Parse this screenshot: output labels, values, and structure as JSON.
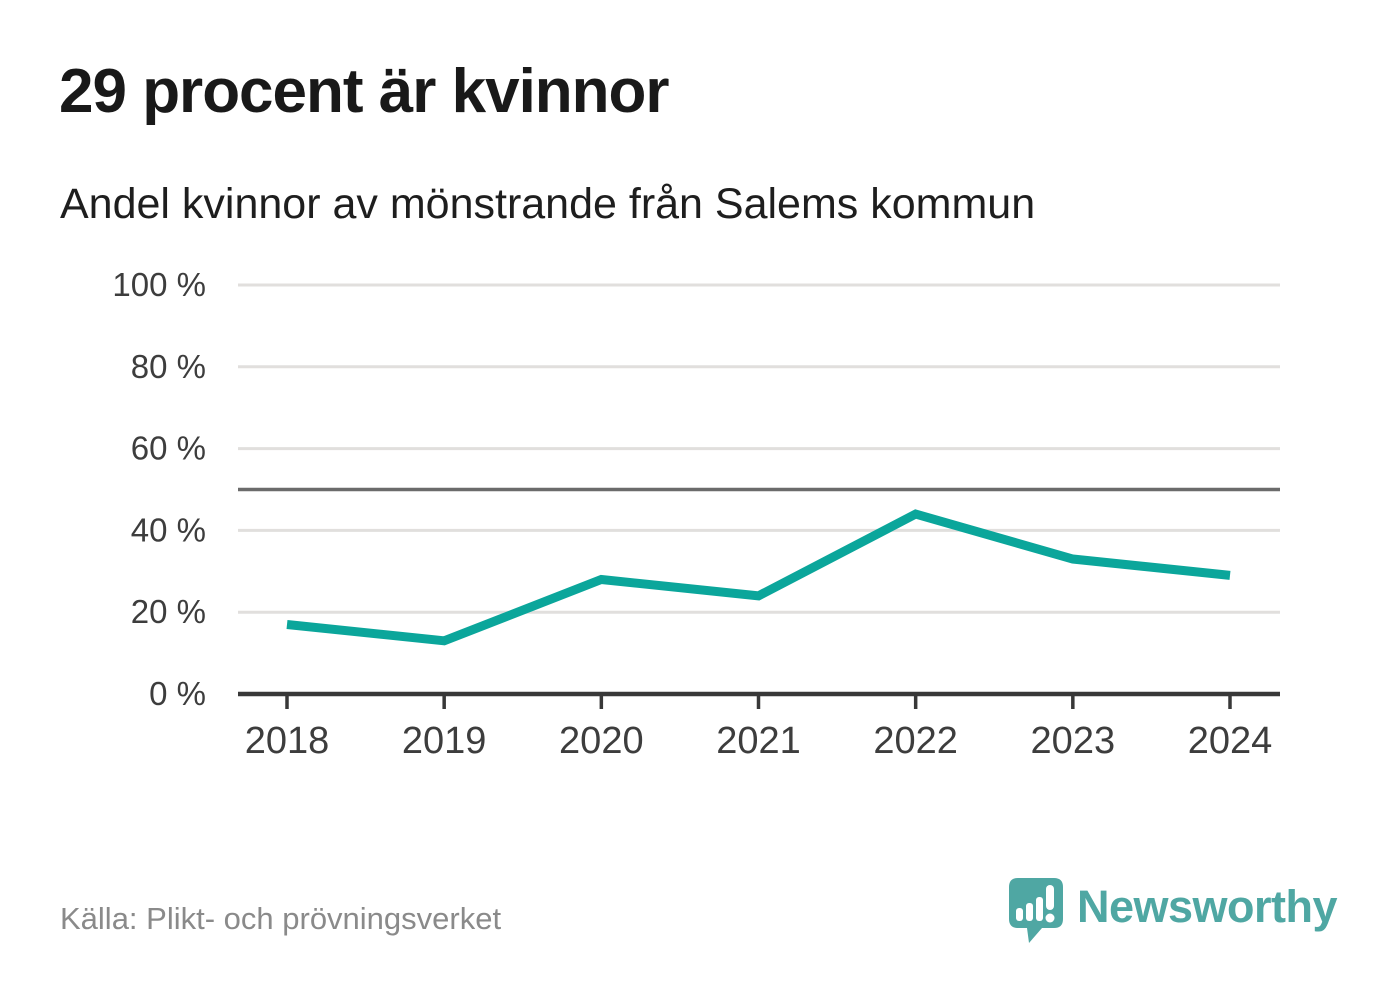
{
  "chart_data": {
    "type": "line",
    "title": "29 procent är kvinnor",
    "subtitle": "Andel kvinnor av mönstrande från Salems kommun",
    "source": "Källa: Plikt- och prövningsverket",
    "x": [
      2018,
      2019,
      2020,
      2021,
      2022,
      2023,
      2024
    ],
    "xtick_labels": [
      "2018",
      "2019",
      "2020",
      "2021",
      "2022",
      "2023",
      "2024"
    ],
    "series": [
      {
        "name": "Andel kvinnor",
        "values": [
          17,
          13,
          28,
          24,
          44,
          33,
          29
        ],
        "color": "#0ba69b"
      }
    ],
    "unit": "%",
    "ylim": [
      0,
      100
    ],
    "yticks": [
      0,
      20,
      40,
      60,
      80,
      100
    ],
    "ytick_labels": [
      "0 %",
      "20 %",
      "40 %",
      "60 %",
      "80 %",
      "100 %"
    ],
    "reference_line": 50,
    "grid": "horizontal",
    "legend": "none"
  },
  "footer": {
    "logo_text": "Newsworthy"
  },
  "colors": {
    "line": "#0ba69b",
    "logo": "#4fa7a3",
    "grid": "#e1dfdd",
    "reference": "#6b6b6b",
    "axis": "#383838",
    "title_text": "#191919",
    "muted_text": "#8a8a8a"
  }
}
